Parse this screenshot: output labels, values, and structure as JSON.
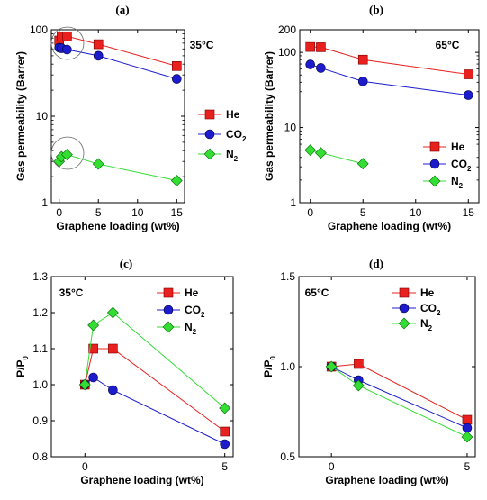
{
  "chart_data": [
    {
      "panel": "(a)",
      "type": "line",
      "annotation": "35°C",
      "xlabel": "Graphene loading (wt%)",
      "ylabel": "Gas permeability (Barrer)",
      "xlim": [
        -1,
        16
      ],
      "ylim": [
        1,
        100
      ],
      "yscale": "log",
      "xticks": [
        0,
        5,
        10,
        15
      ],
      "yticks": [
        1,
        10,
        100
      ],
      "legend_position": "right-middle",
      "series": [
        {
          "name": "He",
          "color": "#e8201e",
          "marker": "square",
          "x": [
            0,
            0.3,
            1,
            5,
            15
          ],
          "y": [
            75,
            83,
            84,
            68,
            38
          ]
        },
        {
          "name": "CO2",
          "color": "#1c1ccc",
          "marker": "circle",
          "x": [
            0,
            0.3,
            1,
            5,
            15
          ],
          "y": [
            62,
            61,
            59,
            50,
            27
          ]
        },
        {
          "name": "N2",
          "color": "#33dd33",
          "marker": "diamond",
          "x": [
            0,
            0.3,
            1,
            5,
            15
          ],
          "y": [
            3.0,
            3.4,
            3.6,
            2.8,
            1.8
          ]
        }
      ]
    },
    {
      "panel": "(b)",
      "type": "line",
      "annotation": "65°C",
      "xlabel": "Graphene loading (wt%)",
      "ylabel": "Gas permeability (Barrer)",
      "xlim": [
        -1,
        16
      ],
      "ylim": [
        1,
        200
      ],
      "yscale": "log",
      "xticks": [
        0,
        5,
        10,
        15
      ],
      "yticks": [
        1,
        10,
        100,
        200
      ],
      "legend_position": "bottom-right",
      "series": [
        {
          "name": "He",
          "color": "#e8201e",
          "marker": "square",
          "x": [
            0,
            1,
            5,
            15
          ],
          "y": [
            118,
            117,
            80,
            51
          ]
        },
        {
          "name": "CO2",
          "color": "#1c1ccc",
          "marker": "circle",
          "x": [
            0,
            1,
            5,
            15
          ],
          "y": [
            69,
            62,
            41,
            27
          ]
        },
        {
          "name": "N2",
          "color": "#33dd33",
          "marker": "diamond",
          "x": [
            0,
            1,
            5
          ],
          "y": [
            5.0,
            4.6,
            3.3
          ]
        }
      ]
    },
    {
      "panel": "(c)",
      "type": "line",
      "annotation": "35°C",
      "xlabel": "Graphene loading (wt%)",
      "ylabel": "P/P0",
      "xlim": [
        -1.2,
        5.3
      ],
      "ylim": [
        0.8,
        1.3
      ],
      "xticks": [
        0,
        5
      ],
      "yticks": [
        0.8,
        0.9,
        1.0,
        1.1,
        1.2,
        1.3
      ],
      "ytick_labels": [
        "0.8",
        "0.9",
        "1.0",
        "1.1",
        "1.2",
        "1.3"
      ],
      "legend_position": "top-right",
      "series": [
        {
          "name": "He",
          "color": "#e8201e",
          "marker": "square",
          "x": [
            0,
            0.3,
            1,
            5
          ],
          "y": [
            1.0,
            1.1,
            1.1,
            0.87
          ]
        },
        {
          "name": "CO2",
          "color": "#1c1ccc",
          "marker": "circle",
          "x": [
            0,
            0.3,
            1,
            5
          ],
          "y": [
            1.0,
            1.02,
            0.985,
            0.835
          ]
        },
        {
          "name": "N2",
          "color": "#33dd33",
          "marker": "diamond",
          "x": [
            0,
            0.3,
            1,
            5
          ],
          "y": [
            1.0,
            1.165,
            1.2,
            0.935
          ]
        }
      ]
    },
    {
      "panel": "(d)",
      "type": "line",
      "annotation": "65°C",
      "xlabel": "Graphene loading (wt%)",
      "ylabel": "P/P0",
      "xlim": [
        -1.2,
        5.3
      ],
      "ylim": [
        0.5,
        1.5
      ],
      "xticks": [
        0,
        5
      ],
      "yticks": [
        0.5,
        1.0,
        1.5
      ],
      "ytick_labels": [
        "0.5",
        "1.0",
        "1.5"
      ],
      "legend_position": "top-right",
      "series": [
        {
          "name": "He",
          "color": "#e8201e",
          "marker": "square",
          "x": [
            0,
            1,
            5
          ],
          "y": [
            1.0,
            1.015,
            0.705
          ]
        },
        {
          "name": "CO2",
          "color": "#1c1ccc",
          "marker": "circle",
          "x": [
            0,
            1,
            5
          ],
          "y": [
            1.0,
            0.925,
            0.66
          ]
        },
        {
          "name": "N2",
          "color": "#33dd33",
          "marker": "diamond",
          "x": [
            0,
            1,
            5
          ],
          "y": [
            1.0,
            0.895,
            0.61
          ]
        }
      ]
    }
  ]
}
